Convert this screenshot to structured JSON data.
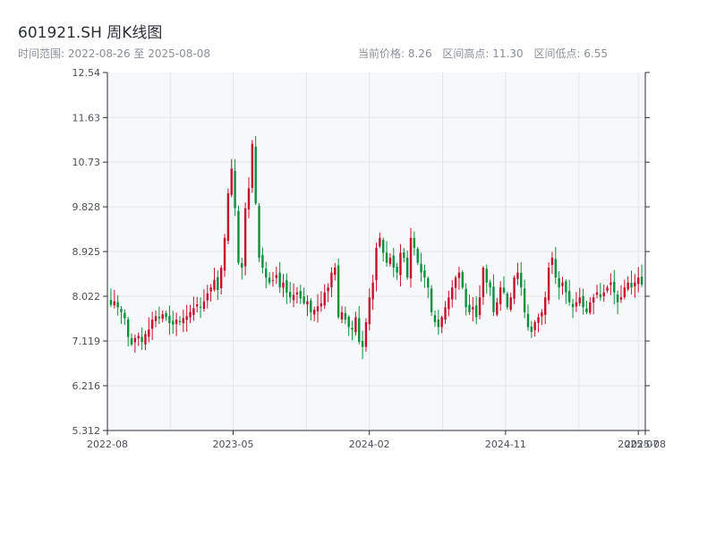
{
  "header": {
    "title": "601921.SH 周K线图",
    "range_label": "时间范围: 2022-08-26 至 2025-08-08",
    "current_price_label": "当前价格: 8.26",
    "high_label": "区间高点: 11.30",
    "low_label": "区间低点: 6.55"
  },
  "chart_data": {
    "type": "candlestick",
    "title": "601921.SH 周K线图",
    "x_range": [
      "2022-08-26",
      "2025-08-08"
    ],
    "ylim": [
      5.312,
      12.54
    ],
    "y_ticks": [
      "5.312",
      "6.216",
      "7.119",
      "8.022",
      "8.925",
      "9.828",
      "10.73",
      "11.63",
      "12.54"
    ],
    "x_ticks": [
      "2022-08",
      "2023-05",
      "2024-02",
      "2024-11",
      "2025-07",
      "2025-08"
    ],
    "colors": {
      "up": "#c8102e",
      "down": "#0a8f3c",
      "grid": "#e3e6ea",
      "plot_bg": "#f7f8fa",
      "axis": "#2b2f36"
    },
    "current_price": 8.26,
    "period_high": 11.3,
    "period_low": 6.55,
    "weeks": 155,
    "closes": [
      7.85,
      7.92,
      7.8,
      7.7,
      7.58,
      7.2,
      7.05,
      7.18,
      7.22,
      7.1,
      7.26,
      7.35,
      7.55,
      7.62,
      7.58,
      7.66,
      7.6,
      7.48,
      7.45,
      7.55,
      7.5,
      7.58,
      7.62,
      7.7,
      7.78,
      7.86,
      7.8,
      7.92,
      8.08,
      8.2,
      8.35,
      8.15,
      8.6,
      9.2,
      10.1,
      10.6,
      9.8,
      8.7,
      8.6,
      9.8,
      10.2,
      11.1,
      9.9,
      8.8,
      8.6,
      8.4,
      8.3,
      8.35,
      8.45,
      8.2,
      8.3,
      8.1,
      8.0,
      8.05,
      8.1,
      7.98,
      7.88,
      7.92,
      7.7,
      7.75,
      7.82,
      7.88,
      8.1,
      8.2,
      8.5,
      8.6,
      7.6,
      7.7,
      7.55,
      7.4,
      7.35,
      7.6,
      7.1,
      7.0,
      7.5,
      8.0,
      8.3,
      9.0,
      9.2,
      8.9,
      8.7,
      8.8,
      8.6,
      8.5,
      8.9,
      8.8,
      8.4,
      9.2,
      9.0,
      8.7,
      8.5,
      8.4,
      8.2,
      7.7,
      7.5,
      7.4,
      7.6,
      7.8,
      8.0,
      8.2,
      8.4,
      8.5,
      8.2,
      7.8,
      7.7,
      7.8,
      7.6,
      8.0,
      8.6,
      8.3,
      8.2,
      7.7,
      7.9,
      8.2,
      8.1,
      7.8,
      8.0,
      8.4,
      8.5,
      8.2,
      7.7,
      7.4,
      7.3,
      7.5,
      7.6,
      7.7,
      8.0,
      8.6,
      8.8,
      8.4,
      8.2,
      8.3,
      8.1,
      7.9,
      7.8,
      7.9,
      8.0,
      7.8,
      7.7,
      7.9,
      8.0,
      8.1,
      8.0,
      8.1,
      8.2,
      8.3,
      8.1,
      7.9,
      8.0,
      8.2,
      8.3,
      8.2,
      8.3,
      8.4,
      8.26
    ]
  }
}
